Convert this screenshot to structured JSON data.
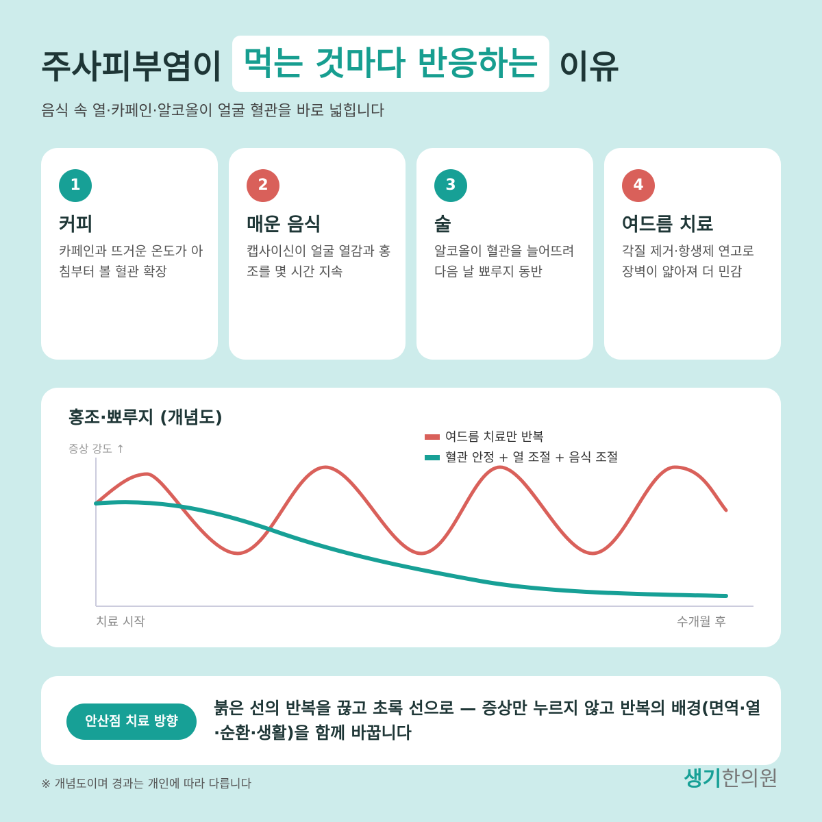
{
  "header": {
    "title_parts": [
      "주사피부염이",
      "먹는 것마다 반응하는",
      "이유"
    ],
    "subtitle": "음식 속 열·카페인·알코올이 얼굴 혈관을 바로 넓힙니다"
  },
  "cards": [
    {
      "number": 1,
      "title": "커피",
      "text": "카페인과 뜨거운 온도가 아침부터 볼 혈관 확장"
    },
    {
      "number": 2,
      "title": "매운 음식",
      "text": "캡사이신이 얼굴 열감과 홍조를 몇 시간 지속"
    },
    {
      "number": 3,
      "title": "술",
      "text": "알코올이 혈관을 늘어뜨려 다음 날 뾰루지 동반"
    },
    {
      "number": 4,
      "title": "여드름 치료",
      "text": "각질 제거·항생제 연고로 장벽이 얇아져 더 민감"
    }
  ],
  "chart": {
    "title": "홍조·뾰루지 (개념도)",
    "y_label": "증상 강도 ↑",
    "x_start": "치료 시작",
    "x_end": "수개월 후",
    "legend": [
      "여드름 치료만 반복",
      "혈관 안정 + 열 조절 + 음식 조절"
    ]
  },
  "callout": {
    "badge": "안산점 치료 방향",
    "text": "붉은 선의 반복을 끊고 초록 선으로 — 증상만 누르지 않고 반복의 배경(면역·열·순환·생활)을 함께 바꿉니다"
  },
  "footnote": "※ 개념도이며 경과는 개인에 따라 다릅니다",
  "logo": [
    "생기",
    "한의원"
  ]
}
